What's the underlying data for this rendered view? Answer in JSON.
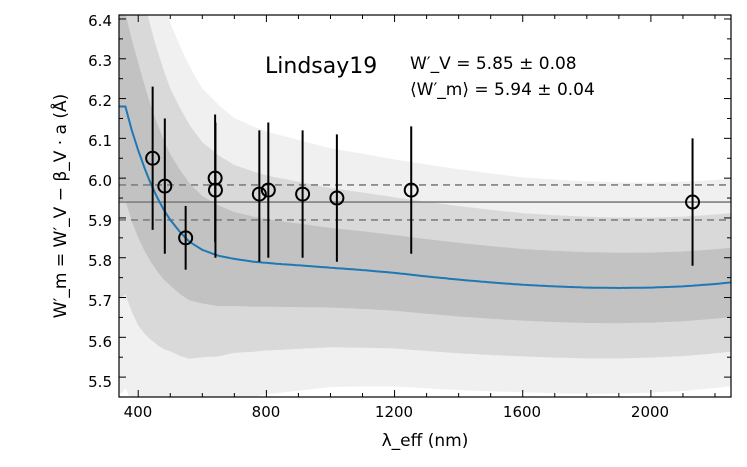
{
  "chart_data": {
    "type": "scatter",
    "title": "Lindsay19",
    "annotations": [
      "W′_V = 5.85 ± 0.08",
      "⟨W′_m⟩ = 5.94 ± 0.04"
    ],
    "xlabel": "λ_eff (nm)",
    "ylabel": "W′_m = W′_V − β_V · a (Å)",
    "xlim": [
      340,
      2250
    ],
    "ylim": [
      5.45,
      6.41
    ],
    "xticks": [
      400,
      800,
      1200,
      1600,
      2000
    ],
    "yticks": [
      5.5,
      5.6,
      5.7,
      5.8,
      5.9,
      6.0,
      6.1,
      6.2,
      6.3,
      6.4
    ],
    "xtick_labels": [
      "400",
      "800",
      "1200",
      "1600",
      "2000"
    ],
    "ytick_labels": [
      "5.5",
      "5.6",
      "5.7",
      "5.8",
      "5.9",
      "6.0",
      "6.1",
      "6.2",
      "6.3",
      "6.4"
    ],
    "points": [
      {
        "x": 445,
        "y": 6.05,
        "lo": 5.87,
        "hi": 6.23
      },
      {
        "x": 483,
        "y": 5.98,
        "lo": 5.81,
        "hi": 6.15
      },
      {
        "x": 548,
        "y": 5.85,
        "lo": 5.77,
        "hi": 5.93
      },
      {
        "x": 640,
        "y": 6.0,
        "lo": 5.84,
        "hi": 6.16
      },
      {
        "x": 641,
        "y": 5.97,
        "lo": 5.8,
        "hi": 6.14
      },
      {
        "x": 778,
        "y": 5.96,
        "lo": 5.79,
        "hi": 6.12
      },
      {
        "x": 806,
        "y": 5.97,
        "lo": 5.8,
        "hi": 6.14
      },
      {
        "x": 913,
        "y": 5.96,
        "lo": 5.8,
        "hi": 6.12
      },
      {
        "x": 1020,
        "y": 5.95,
        "lo": 5.79,
        "hi": 6.11
      },
      {
        "x": 1252,
        "y": 5.97,
        "lo": 5.81,
        "hi": 6.13
      },
      {
        "x": 2130,
        "y": 5.94,
        "lo": 5.78,
        "hi": 6.1
      }
    ],
    "mean_line": 5.94,
    "mean_band": [
      5.895,
      5.983
    ],
    "model_curve": {
      "x": [
        360,
        380,
        400,
        420,
        440,
        460,
        480,
        500,
        530,
        560,
        600,
        650,
        700,
        760,
        830,
        900,
        1000,
        1100,
        1200,
        1300,
        1400,
        1500,
        1600,
        1700,
        1800,
        1900,
        2000,
        2100,
        2200,
        2250
      ],
      "y": [
        6.18,
        6.12,
        6.07,
        6.025,
        5.985,
        5.95,
        5.92,
        5.895,
        5.865,
        5.84,
        5.82,
        5.805,
        5.797,
        5.79,
        5.785,
        5.781,
        5.775,
        5.769,
        5.762,
        5.753,
        5.745,
        5.738,
        5.732,
        5.728,
        5.725,
        5.724,
        5.725,
        5.728,
        5.734,
        5.738
      ]
    },
    "sigma_widths": {
      "x": [
        350,
        400,
        450,
        500,
        600,
        700,
        800,
        1000,
        1200,
        1600,
        2000,
        2250
      ],
      "w": [
        0.24,
        0.22,
        0.19,
        0.165,
        0.135,
        0.118,
        0.11,
        0.1,
        0.095,
        0.09,
        0.088,
        0.087
      ]
    },
    "band_colors": [
      "#f0f0f0",
      "#d9d9d9",
      "#c2c2c2"
    ],
    "colors": {
      "curve": "#1f77b4",
      "points": "#000000",
      "mean": "#808080"
    }
  }
}
